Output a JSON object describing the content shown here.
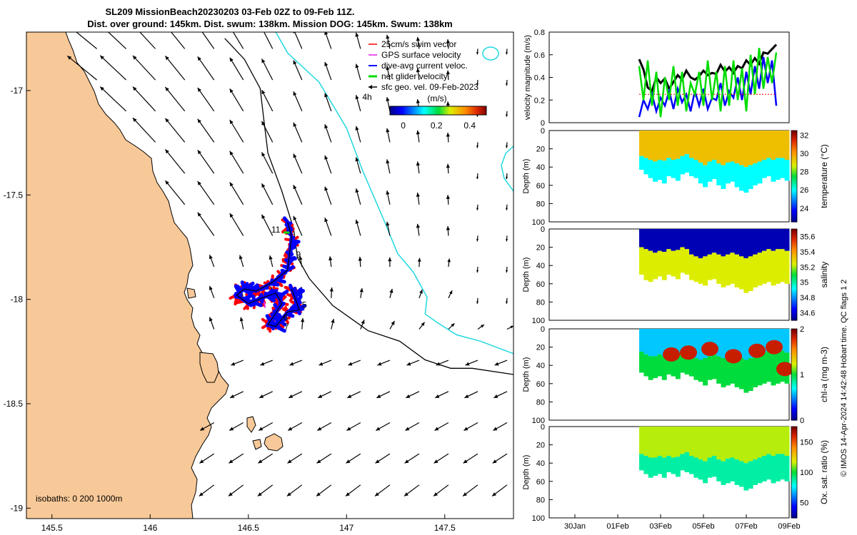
{
  "title_line1": "SL209 MissionBeach20230203 03-Feb 02Z to 09-Feb 11Z.",
  "title_line2": "Dist. over ground: 145km. Dist. swum: 138km. Mission DOG: 145km. Swum: 138km",
  "credit": "© IMOS 14-Apr-2024 14:42:48 Hobart time. QC flags 1  2",
  "colors": {
    "land": "#f8c998",
    "isobath200": "#000000",
    "isobath1000": "#22d8e0",
    "swim": "#ff0000",
    "gps": "#e020e0",
    "current": "#0000ff",
    "net": "#00dd00",
    "vector": "#000000"
  },
  "chart_data": [
    {
      "type": "map",
      "title": "SL209 MissionBeach20230203 03-Feb 02Z to 09-Feb 11Z.",
      "xlim": [
        145.37,
        147.85
      ],
      "ylim": [
        -19.05,
        -16.72
      ],
      "xticks": [
        145.5,
        146,
        146.5,
        147,
        147.5
      ],
      "xtick_labels": [
        "145.5",
        "146",
        "146.5",
        "147",
        "147.5"
      ],
      "yticks": [
        -17,
        -17.5,
        -18,
        -18.5,
        -19
      ],
      "ytick_labels": [
        "-17",
        "-17.5",
        "-18",
        "-18.5",
        "-19"
      ],
      "legend": {
        "location": "top-right",
        "entries": [
          "25cm/s swim vector",
          "GPS surface velocity",
          "dive-avg current veloc.",
          "net glider velocity",
          "sfc geo. vel. 09-Feb-2023"
        ],
        "time_label": "4h"
      },
      "colorbar": {
        "label": "(m/s)",
        "ticks": [
          0,
          0.2,
          0.4
        ],
        "tick_labels": [
          "0",
          "0.2",
          "0.4"
        ],
        "range": [
          -0.08,
          0.5
        ]
      },
      "isobath_label": "isobaths: 0   200  1000m",
      "glider_track": [
        [
          146.7,
          -17.63
        ],
        [
          146.72,
          -17.7
        ],
        [
          146.71,
          -17.78
        ],
        [
          146.7,
          -17.86
        ],
        [
          146.62,
          -17.92
        ],
        [
          146.54,
          -17.96
        ],
        [
          146.48,
          -17.95
        ],
        [
          146.44,
          -17.98
        ],
        [
          146.5,
          -18.02
        ],
        [
          146.58,
          -17.99
        ],
        [
          146.64,
          -17.97
        ],
        [
          146.67,
          -18.02
        ],
        [
          146.63,
          -18.08
        ],
        [
          146.6,
          -18.12
        ],
        [
          146.64,
          -18.13
        ],
        [
          146.7,
          -18.06
        ],
        [
          146.76,
          -18.05
        ],
        [
          146.74,
          -18.0
        ],
        [
          146.72,
          -17.95
        ]
      ],
      "track_day_labels": [
        {
          "text": "5",
          "lon": 146.785,
          "lat": -18.04
        },
        {
          "text": "6",
          "lon": 146.69,
          "lat": -18.1
        },
        {
          "text": "7",
          "lon": 146.695,
          "lat": -18.145
        },
        {
          "text": "9",
          "lon": 146.755,
          "lat": -17.8
        },
        {
          "text": "11",
          "lon": 146.64,
          "lat": -17.68
        }
      ],
      "isobath_200": [
        [
          146.38,
          -16.75
        ],
        [
          146.48,
          -16.85
        ],
        [
          146.56,
          -16.99
        ],
        [
          146.58,
          -17.15
        ],
        [
          146.6,
          -17.3
        ],
        [
          146.67,
          -17.48
        ],
        [
          146.73,
          -17.66
        ],
        [
          146.75,
          -17.8
        ],
        [
          146.81,
          -17.9
        ],
        [
          146.93,
          -18.03
        ],
        [
          147.11,
          -18.15
        ],
        [
          147.27,
          -18.2
        ],
        [
          147.4,
          -18.29
        ],
        [
          147.53,
          -18.33
        ],
        [
          147.64,
          -18.33
        ],
        [
          147.85,
          -18.36
        ]
      ],
      "isobath_1000": [
        [
          146.64,
          -16.72
        ],
        [
          146.7,
          -16.82
        ],
        [
          146.86,
          -16.96
        ],
        [
          147.0,
          -17.18
        ],
        [
          147.08,
          -17.38
        ],
        [
          147.19,
          -17.62
        ],
        [
          147.26,
          -17.78
        ],
        [
          147.34,
          -17.87
        ],
        [
          147.41,
          -17.99
        ],
        [
          147.4,
          -18.07
        ],
        [
          147.46,
          -18.11
        ],
        [
          147.56,
          -18.17
        ],
        [
          147.68,
          -18.2
        ],
        [
          147.85,
          -18.26
        ]
      ],
      "vector_field": "sfc geo. vel. 09-Feb-2023 (0.15-degree grid)"
    },
    {
      "type": "line",
      "ylabel": "velocity magnitude (m/s)",
      "ylim": [
        0,
        0.8
      ],
      "yticks": [
        0,
        0.2,
        0.4,
        0.6,
        0.8
      ],
      "ytick_labels": [
        "0",
        "0.2",
        "0.4",
        "0.6",
        "0.8"
      ],
      "x": [
        3.0,
        3.2,
        3.4,
        3.6,
        3.8,
        4.0,
        4.2,
        4.4,
        4.6,
        4.8,
        5.0,
        5.2,
        5.4,
        5.6,
        5.8,
        6.0,
        6.2,
        6.4,
        6.6,
        6.8,
        7.0,
        7.2,
        7.4,
        7.6,
        7.8,
        8.0,
        8.2,
        8.4,
        8.6,
        8.8,
        9.0,
        9.2,
        9.4
      ],
      "series": [
        {
          "name": "net glider velocity",
          "color": "#000000",
          "values": [
            0.56,
            0.47,
            0.31,
            0.28,
            0.4,
            0.35,
            0.39,
            0.3,
            0.36,
            0.42,
            0.38,
            0.46,
            0.4,
            0.38,
            0.41,
            0.46,
            0.42,
            0.44,
            0.43,
            0.51,
            0.45,
            0.49,
            0.44,
            0.5,
            0.48,
            0.55,
            0.51,
            0.57,
            0.52,
            0.62,
            0.61,
            0.65,
            0.69
          ]
        },
        {
          "name": "dive-avg current veloc.",
          "color": "#0000ff",
          "values": [
            0.05,
            0.2,
            0.12,
            0.25,
            0.1,
            0.22,
            0.15,
            0.28,
            0.12,
            0.3,
            0.18,
            0.25,
            0.1,
            0.28,
            0.15,
            0.3,
            0.12,
            0.22,
            0.2,
            0.35,
            0.15,
            0.28,
            0.22,
            0.4,
            0.2,
            0.45,
            0.25,
            0.5,
            0.3,
            0.58,
            0.35,
            0.55,
            0.15
          ]
        },
        {
          "name": "25cm/s swim vector",
          "color": "#ff0000",
          "values": [
            0.25,
            0.25,
            0.25,
            0.25,
            0.25,
            0.25,
            0.25,
            0.25,
            0.25,
            0.25,
            0.25,
            0.25,
            0.25,
            0.25,
            0.25,
            0.25,
            0.25,
            0.25,
            0.25,
            0.25,
            0.25,
            0.25,
            0.25,
            0.25,
            0.25,
            0.25,
            0.25,
            0.25,
            0.25,
            0.25,
            0.25,
            0.25,
            0.25
          ]
        },
        {
          "name": "GPS surface velocity",
          "color": "#00dd00",
          "values": [
            0.5,
            0.2,
            0.55,
            0.15,
            0.45,
            0.05,
            0.4,
            0.2,
            0.5,
            0.15,
            0.45,
            0.1,
            0.35,
            0.25,
            0.45,
            0.15,
            0.55,
            0.2,
            0.45,
            0.1,
            0.5,
            0.15,
            0.55,
            0.2,
            0.48,
            0.1,
            0.6,
            0.25,
            0.66,
            0.3,
            0.58,
            0.35,
            0.62
          ]
        }
      ]
    },
    {
      "type": "heatmap",
      "ylabel": "Depth (m)",
      "clabel": "temperature (°C)",
      "ylim": [
        100,
        0
      ],
      "yticks": [
        0,
        20,
        40,
        60,
        80,
        100
      ],
      "ctick_labels": [
        "24",
        "26",
        "28",
        "30",
        "32"
      ],
      "crange": [
        22.5,
        32.5
      ],
      "surface_value": 29.5,
      "deep_value": 26,
      "profile_bottom_m": [
        43,
        48,
        52,
        56,
        54,
        58,
        50,
        52,
        55,
        48,
        46,
        50,
        52,
        58,
        62,
        56,
        53,
        60,
        64,
        58,
        56,
        62,
        66,
        68,
        64,
        60,
        58,
        52,
        50,
        56,
        54,
        52,
        55
      ],
      "transition_depth_m": [
        28,
        30,
        32,
        34,
        32,
        33,
        30,
        32,
        31,
        28,
        26,
        30,
        32,
        35,
        38,
        34,
        32,
        36,
        38,
        35,
        34,
        36,
        38,
        40,
        38,
        36,
        34,
        32,
        30,
        32,
        30,
        30,
        32
      ]
    },
    {
      "type": "heatmap",
      "ylabel": "Depth (m)",
      "clabel": "salinity",
      "ylim": [
        100,
        0
      ],
      "yticks": [
        0,
        20,
        40,
        60,
        80,
        100
      ],
      "ctick_labels": [
        "34.6",
        "34.8",
        "35",
        "35.2",
        "35.4",
        "35.6"
      ],
      "crange": [
        34.5,
        35.7
      ],
      "surface_value": 34.55,
      "deep_value": 35.25,
      "profile_bottom_m": [
        50,
        56,
        58,
        55,
        52,
        56,
        50,
        52,
        55,
        48,
        50,
        56,
        58,
        60,
        62,
        56,
        55,
        60,
        64,
        62,
        60,
        64,
        66,
        70,
        68,
        64,
        62,
        60,
        58,
        62,
        60,
        58,
        60
      ],
      "transition_depth_m": [
        20,
        22,
        24,
        26,
        24,
        25,
        22,
        24,
        23,
        20,
        22,
        28,
        30,
        32,
        30,
        28,
        26,
        28,
        30,
        28,
        26,
        28,
        30,
        32,
        30,
        28,
        26,
        24,
        22,
        24,
        22,
        22,
        24
      ]
    },
    {
      "type": "heatmap",
      "ylabel": "Depth (m)",
      "clabel": "chl-a (mg m-3)",
      "ylim": [
        100,
        0
      ],
      "yticks": [
        0,
        20,
        40,
        60,
        80,
        100
      ],
      "ctick_labels": [
        "0",
        "1",
        "2"
      ],
      "crange": [
        0,
        2
      ],
      "surface_value": 0.6,
      "deep_value": 1.0,
      "profile_bottom_m": [
        48,
        52,
        56,
        54,
        52,
        56,
        50,
        52,
        55,
        48,
        50,
        52,
        56,
        58,
        62,
        56,
        55,
        60,
        64,
        62,
        60,
        64,
        66,
        70,
        68,
        64,
        62,
        60,
        58,
        62,
        60,
        58,
        60
      ],
      "transition_depth_m": [
        25,
        28,
        30,
        30,
        28,
        30,
        28,
        30,
        28,
        26,
        28,
        30,
        32,
        34,
        32,
        30,
        28,
        30,
        32,
        30,
        28,
        30,
        32,
        34,
        32,
        30,
        28,
        26,
        24,
        26,
        24,
        24,
        26
      ]
    },
    {
      "type": "heatmap",
      "ylabel": "Depth (m)",
      "clabel": "Ox. sat. ratio (%)",
      "ylim": [
        100,
        0
      ],
      "yticks": [
        0,
        20,
        40,
        60,
        80,
        100
      ],
      "ctick_labels": [
        "50",
        "100",
        "150"
      ],
      "crange": [
        25,
        175
      ],
      "surface_value": 115,
      "deep_value": 88,
      "profile_bottom_m": [
        48,
        52,
        56,
        54,
        52,
        56,
        50,
        52,
        55,
        48,
        50,
        52,
        56,
        58,
        62,
        56,
        55,
        60,
        64,
        62,
        60,
        64,
        66,
        70,
        68,
        64,
        62,
        60,
        58,
        62,
        60,
        58,
        60
      ],
      "transition_depth_m": [
        30,
        32,
        34,
        34,
        32,
        34,
        32,
        34,
        33,
        30,
        28,
        32,
        34,
        36,
        38,
        34,
        32,
        36,
        38,
        35,
        34,
        36,
        38,
        40,
        38,
        36,
        34,
        32,
        30,
        32,
        30,
        30,
        32
      ],
      "xticks": [
        30,
        32,
        34,
        36,
        38,
        40
      ],
      "xtick_labels": [
        "30Jan",
        "01Feb",
        "03Feb",
        "05Feb",
        "07Feb",
        "09Feb"
      ]
    }
  ]
}
